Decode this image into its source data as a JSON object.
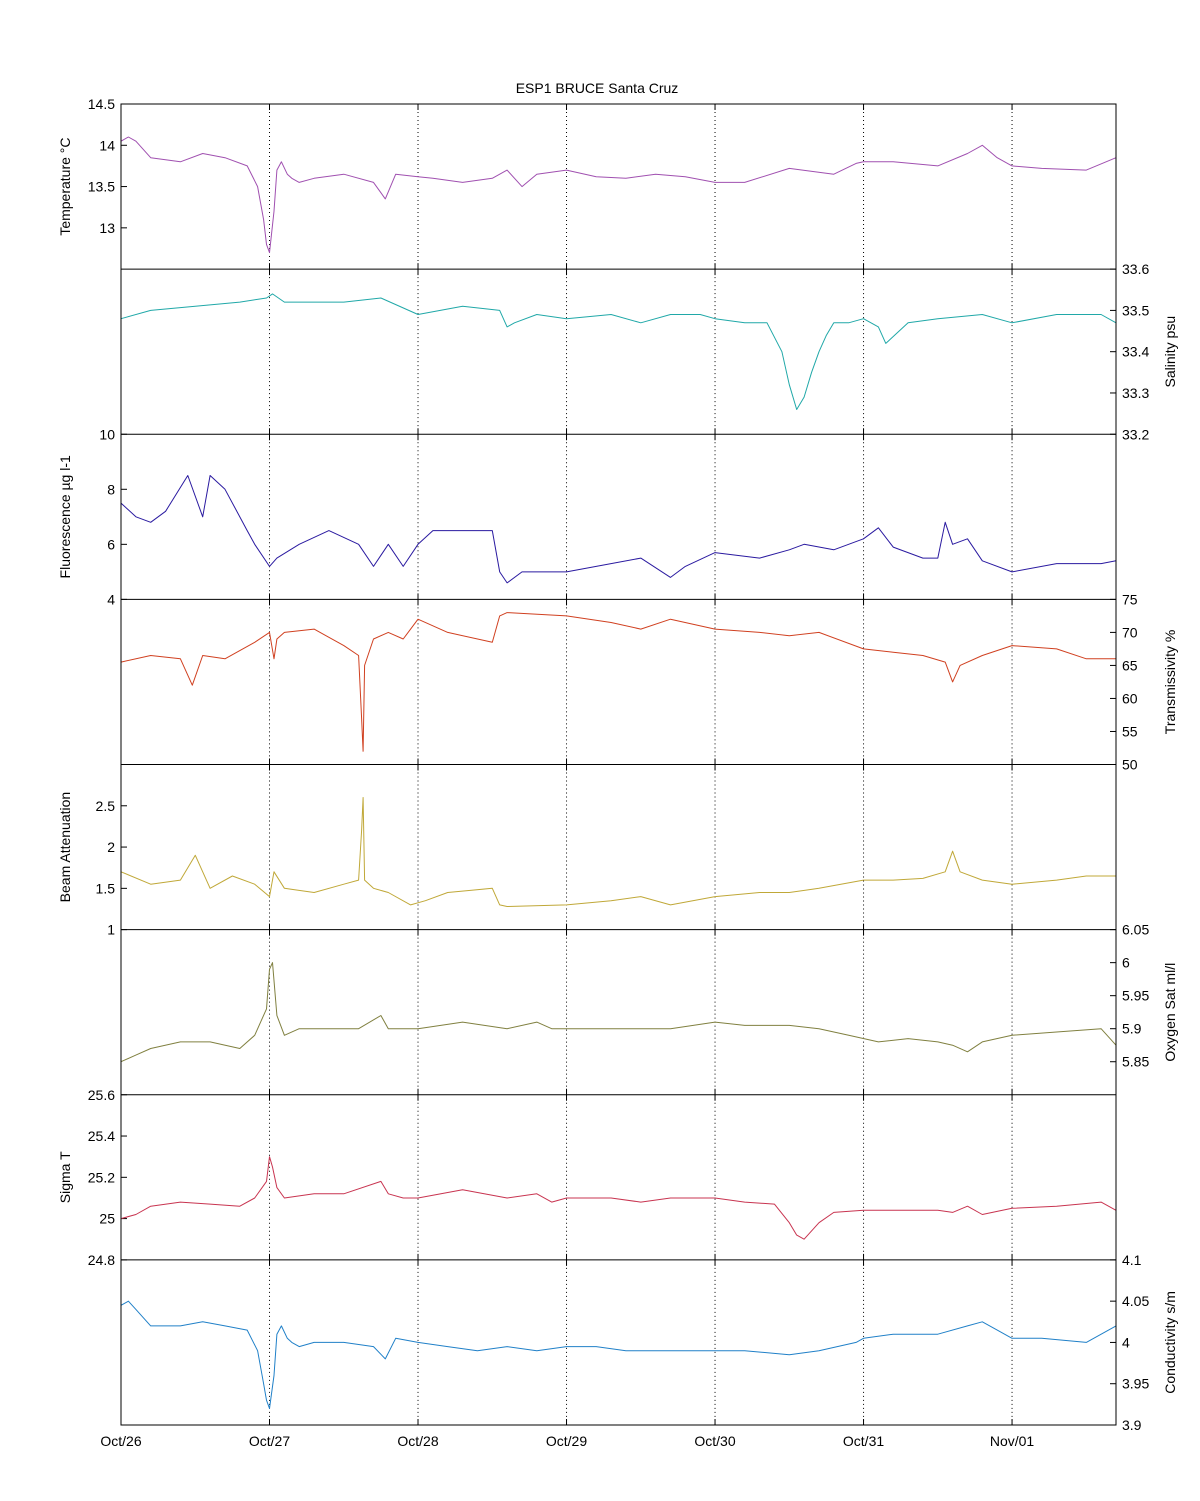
{
  "figure": {
    "title": "ESP1 BRUCE Santa Cruz",
    "x_tick_labels": [
      "Oct/26",
      "Oct/27",
      "Oct/28",
      "Oct/29",
      "Oct/30",
      "Oct/31",
      "Nov/01"
    ]
  },
  "chart_data": [
    {
      "type": "line",
      "ylabel": "Temperature °C",
      "yaxis_side": "left",
      "ylim": [
        12.5,
        14.5
      ],
      "yticks": [
        "14.5",
        "14",
        "13.5",
        "13"
      ],
      "color": "#a050b0",
      "x": [
        0.0,
        0.05,
        0.1,
        0.2,
        0.4,
        0.55,
        0.7,
        0.85,
        0.92,
        0.96,
        0.98,
        1.0,
        1.03,
        1.05,
        1.08,
        1.12,
        1.15,
        1.2,
        1.3,
        1.5,
        1.7,
        1.78,
        1.85,
        2.0,
        2.1,
        2.3,
        2.5,
        2.6,
        2.7,
        2.8,
        3.0,
        3.2,
        3.4,
        3.6,
        3.8,
        4.0,
        4.2,
        4.5,
        4.8,
        4.95,
        5.0,
        5.2,
        5.5,
        5.7,
        5.8,
        5.9,
        6.0,
        6.2,
        6.5,
        6.7
      ],
      "y": [
        14.05,
        14.1,
        14.05,
        13.85,
        13.8,
        13.9,
        13.85,
        13.75,
        13.5,
        13.1,
        12.8,
        12.7,
        13.2,
        13.7,
        13.8,
        13.65,
        13.6,
        13.55,
        13.6,
        13.65,
        13.55,
        13.35,
        13.65,
        13.62,
        13.6,
        13.55,
        13.6,
        13.7,
        13.5,
        13.65,
        13.7,
        13.62,
        13.6,
        13.65,
        13.62,
        13.55,
        13.55,
        13.72,
        13.65,
        13.78,
        13.8,
        13.8,
        13.75,
        13.9,
        14.0,
        13.85,
        13.75,
        13.72,
        13.7,
        13.85
      ]
    },
    {
      "type": "line",
      "ylabel": "Salinity psu",
      "yaxis_side": "right",
      "ylim": [
        33.2,
        33.6
      ],
      "yticks": [
        "33.6",
        "33.5",
        "33.4",
        "33.3",
        "33.2"
      ],
      "color": "#20a8a8",
      "x": [
        0.0,
        0.2,
        0.5,
        0.8,
        0.98,
        1.02,
        1.1,
        1.5,
        1.75,
        2.0,
        2.3,
        2.55,
        2.6,
        2.65,
        2.8,
        3.0,
        3.3,
        3.5,
        3.7,
        3.9,
        4.0,
        4.2,
        4.35,
        4.45,
        4.5,
        4.55,
        4.6,
        4.65,
        4.7,
        4.75,
        4.8,
        4.9,
        5.0,
        5.1,
        5.15,
        5.3,
        5.5,
        5.8,
        6.0,
        6.3,
        6.6,
        6.7
      ],
      "y": [
        33.48,
        33.5,
        33.51,
        33.52,
        33.53,
        33.54,
        33.52,
        33.52,
        33.53,
        33.49,
        33.51,
        33.5,
        33.46,
        33.47,
        33.49,
        33.48,
        33.49,
        33.47,
        33.49,
        33.49,
        33.48,
        33.47,
        33.47,
        33.4,
        33.32,
        33.26,
        33.29,
        33.35,
        33.4,
        33.44,
        33.47,
        33.47,
        33.48,
        33.46,
        33.42,
        33.47,
        33.48,
        33.49,
        33.47,
        33.49,
        33.49,
        33.47
      ]
    },
    {
      "type": "line",
      "ylabel": "Fluorescence µg l-1",
      "yaxis_side": "left",
      "ylim": [
        4,
        10
      ],
      "yticks": [
        "10",
        "8",
        "6",
        "4"
      ],
      "color": "#2a1aa0",
      "x": [
        0.0,
        0.1,
        0.2,
        0.3,
        0.45,
        0.55,
        0.6,
        0.7,
        0.85,
        0.9,
        1.0,
        1.05,
        1.2,
        1.4,
        1.6,
        1.7,
        1.8,
        1.9,
        2.0,
        2.1,
        2.3,
        2.5,
        2.55,
        2.6,
        2.7,
        3.0,
        3.2,
        3.5,
        3.7,
        3.8,
        4.0,
        4.3,
        4.5,
        4.6,
        4.8,
        5.0,
        5.1,
        5.2,
        5.4,
        5.5,
        5.55,
        5.6,
        5.7,
        5.8,
        6.0,
        6.3,
        6.6,
        6.7
      ],
      "y": [
        7.5,
        7.0,
        6.8,
        7.2,
        8.5,
        7.0,
        8.5,
        8.0,
        6.5,
        6.0,
        5.2,
        5.5,
        6.0,
        6.5,
        6.0,
        5.2,
        6.0,
        5.2,
        6.0,
        6.5,
        6.5,
        6.5,
        5.0,
        4.6,
        5.0,
        5.0,
        5.2,
        5.5,
        4.8,
        5.2,
        5.7,
        5.5,
        5.8,
        6.0,
        5.8,
        6.2,
        6.6,
        5.9,
        5.5,
        5.5,
        6.8,
        6.0,
        6.2,
        5.4,
        5.0,
        5.3,
        5.3,
        5.4
      ]
    },
    {
      "type": "line",
      "ylabel": "Transmissivity %",
      "yaxis_side": "right",
      "ylim": [
        50,
        75
      ],
      "yticks": [
        "75",
        "70",
        "65",
        "60",
        "55",
        "50"
      ],
      "color": "#d04020",
      "x": [
        0.0,
        0.2,
        0.4,
        0.48,
        0.55,
        0.7,
        0.9,
        1.0,
        1.03,
        1.05,
        1.1,
        1.3,
        1.5,
        1.6,
        1.62,
        1.63,
        1.64,
        1.7,
        1.8,
        1.9,
        2.0,
        2.2,
        2.5,
        2.55,
        2.6,
        3.0,
        3.3,
        3.5,
        3.7,
        4.0,
        4.3,
        4.5,
        4.7,
        5.0,
        5.2,
        5.4,
        5.55,
        5.6,
        5.65,
        5.8,
        6.0,
        6.3,
        6.5,
        6.7
      ],
      "y": [
        65.5,
        66.5,
        66.0,
        62.0,
        66.5,
        66.0,
        68.5,
        70.0,
        66.0,
        69.0,
        70.0,
        70.5,
        68.0,
        66.5,
        57.0,
        52.0,
        65.0,
        69.0,
        70.0,
        69.0,
        72.0,
        70.0,
        68.5,
        72.5,
        73.0,
        72.5,
        71.5,
        70.5,
        72.0,
        70.5,
        70.0,
        69.5,
        70.0,
        67.5,
        67.0,
        66.5,
        65.5,
        62.5,
        65.0,
        66.5,
        68.0,
        67.5,
        66.0,
        66.0
      ]
    },
    {
      "type": "line",
      "ylabel": "Beam Attenuation",
      "yaxis_side": "left",
      "ylim": [
        1,
        3
      ],
      "yticks": [
        "2.5",
        "2",
        "1.5",
        "1"
      ],
      "color": "#c0a838",
      "x": [
        0.0,
        0.2,
        0.4,
        0.5,
        0.6,
        0.75,
        0.9,
        1.0,
        1.03,
        1.1,
        1.3,
        1.5,
        1.6,
        1.62,
        1.63,
        1.64,
        1.7,
        1.8,
        1.95,
        2.05,
        2.2,
        2.5,
        2.55,
        2.6,
        3.0,
        3.3,
        3.5,
        3.7,
        4.0,
        4.3,
        4.5,
        4.7,
        5.0,
        5.2,
        5.4,
        5.55,
        5.6,
        5.65,
        5.8,
        6.0,
        6.3,
        6.5,
        6.7
      ],
      "y": [
        1.7,
        1.55,
        1.6,
        1.9,
        1.5,
        1.65,
        1.55,
        1.4,
        1.7,
        1.5,
        1.45,
        1.55,
        1.6,
        2.2,
        2.6,
        1.6,
        1.5,
        1.45,
        1.3,
        1.35,
        1.45,
        1.5,
        1.3,
        1.28,
        1.3,
        1.35,
        1.4,
        1.3,
        1.4,
        1.45,
        1.45,
        1.5,
        1.6,
        1.6,
        1.62,
        1.7,
        1.95,
        1.7,
        1.6,
        1.55,
        1.6,
        1.65,
        1.65
      ]
    },
    {
      "type": "line",
      "ylabel": "Oxygen Sat ml/l",
      "yaxis_side": "right",
      "ylim": [
        5.8,
        6.05
      ],
      "yticks": [
        "6.05",
        "6",
        "5.95",
        "5.9",
        "5.85"
      ],
      "color": "#808040",
      "x": [
        0.0,
        0.1,
        0.2,
        0.4,
        0.6,
        0.8,
        0.9,
        0.98,
        1.0,
        1.02,
        1.05,
        1.1,
        1.2,
        1.4,
        1.6,
        1.75,
        1.8,
        1.9,
        2.0,
        2.3,
        2.6,
        2.8,
        2.9,
        3.0,
        3.3,
        3.5,
        3.7,
        4.0,
        4.2,
        4.5,
        4.7,
        4.9,
        5.1,
        5.3,
        5.5,
        5.6,
        5.7,
        5.8,
        6.0,
        6.3,
        6.6,
        6.7
      ],
      "y": [
        5.85,
        5.86,
        5.87,
        5.88,
        5.88,
        5.87,
        5.89,
        5.93,
        5.99,
        6.0,
        5.92,
        5.89,
        5.9,
        5.9,
        5.9,
        5.92,
        5.9,
        5.9,
        5.9,
        5.91,
        5.9,
        5.91,
        5.9,
        5.9,
        5.9,
        5.9,
        5.9,
        5.91,
        5.905,
        5.905,
        5.9,
        5.89,
        5.88,
        5.885,
        5.88,
        5.875,
        5.865,
        5.88,
        5.89,
        5.895,
        5.9,
        5.875
      ]
    },
    {
      "type": "line",
      "ylabel": "Sigma T",
      "yaxis_side": "left",
      "ylim": [
        24.8,
        25.6
      ],
      "yticks": [
        "25.6",
        "25.4",
        "25.2",
        "25",
        "24.8"
      ],
      "color": "#c83450",
      "x": [
        0.0,
        0.1,
        0.2,
        0.4,
        0.6,
        0.8,
        0.9,
        0.98,
        1.0,
        1.02,
        1.05,
        1.1,
        1.3,
        1.5,
        1.75,
        1.8,
        1.9,
        2.0,
        2.3,
        2.6,
        2.8,
        2.9,
        3.0,
        3.3,
        3.5,
        3.7,
        4.0,
        4.2,
        4.4,
        4.5,
        4.55,
        4.6,
        4.7,
        4.8,
        5.0,
        5.2,
        5.5,
        5.6,
        5.7,
        5.8,
        6.0,
        6.3,
        6.6,
        6.7
      ],
      "y": [
        25.0,
        25.02,
        25.06,
        25.08,
        25.07,
        25.06,
        25.1,
        25.18,
        25.3,
        25.25,
        25.15,
        25.1,
        25.12,
        25.12,
        25.18,
        25.12,
        25.1,
        25.1,
        25.14,
        25.1,
        25.12,
        25.08,
        25.1,
        25.1,
        25.08,
        25.1,
        25.1,
        25.08,
        25.07,
        24.98,
        24.92,
        24.9,
        24.98,
        25.03,
        25.04,
        25.04,
        25.04,
        25.03,
        25.06,
        25.02,
        25.05,
        25.06,
        25.08,
        25.04
      ]
    },
    {
      "type": "line",
      "ylabel": "Conductivity s/m",
      "yaxis_side": "right",
      "ylim": [
        3.9,
        4.1
      ],
      "yticks": [
        "4.1",
        "4.05",
        "4",
        "3.95",
        "3.9"
      ],
      "color": "#2080c8",
      "x": [
        0.0,
        0.05,
        0.1,
        0.2,
        0.4,
        0.55,
        0.7,
        0.85,
        0.92,
        0.96,
        0.98,
        1.0,
        1.03,
        1.05,
        1.08,
        1.12,
        1.15,
        1.2,
        1.3,
        1.5,
        1.7,
        1.78,
        1.85,
        2.0,
        2.2,
        2.4,
        2.6,
        2.8,
        3.0,
        3.2,
        3.4,
        3.6,
        3.8,
        4.0,
        4.2,
        4.5,
        4.7,
        4.95,
        5.0,
        5.2,
        5.5,
        5.7,
        5.8,
        5.9,
        6.0,
        6.2,
        6.5,
        6.7
      ],
      "y": [
        4.045,
        4.05,
        4.04,
        4.02,
        4.02,
        4.025,
        4.02,
        4.015,
        3.99,
        3.95,
        3.93,
        3.92,
        3.96,
        4.01,
        4.02,
        4.005,
        4.0,
        3.995,
        4.0,
        4.0,
        3.995,
        3.98,
        4.005,
        4.0,
        3.995,
        3.99,
        3.995,
        3.99,
        3.995,
        3.995,
        3.99,
        3.99,
        3.99,
        3.99,
        3.99,
        3.985,
        3.99,
        4.0,
        4.005,
        4.01,
        4.01,
        4.02,
        4.025,
        4.015,
        4.005,
        4.005,
        4.0,
        4.02
      ]
    }
  ]
}
